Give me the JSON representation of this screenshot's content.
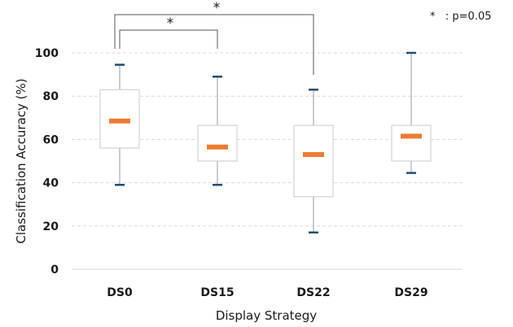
{
  "chart_data": {
    "type": "box",
    "xlabel": "Display Strategy",
    "ylabel": "Classification Accuracy (%)",
    "ylim": [
      0,
      110
    ],
    "yticks": [
      0,
      20,
      40,
      60,
      80,
      100
    ],
    "grid": true,
    "categories": [
      "DS0",
      "DS15",
      "DS22",
      "DS29"
    ],
    "boxes": [
      {
        "label": "DS0",
        "min": 39,
        "q1": 56,
        "median": 68.5,
        "q3": 83,
        "max": 94.5
      },
      {
        "label": "DS15",
        "min": 39,
        "q1": 50,
        "median": 56.5,
        "q3": 66.5,
        "max": 89
      },
      {
        "label": "DS22",
        "min": 17,
        "q1": 33.5,
        "median": 53,
        "q3": 66.5,
        "max": 83
      },
      {
        "label": "DS29",
        "min": 44.5,
        "q1": 50,
        "median": 61.5,
        "q3": 66.5,
        "max": 100
      }
    ],
    "significance": [
      {
        "from": "DS0",
        "to": "DS15",
        "label": "*"
      },
      {
        "from": "DS0",
        "to": "DS22",
        "label": "*"
      }
    ],
    "legend_note": "*   : p=0.05",
    "colors": {
      "median": "#ED7D31",
      "whisker_cap": "#1F4E79",
      "box_edge": "#c8c8c8",
      "whisker": "#999999",
      "grid": "#d9d9d9"
    }
  }
}
